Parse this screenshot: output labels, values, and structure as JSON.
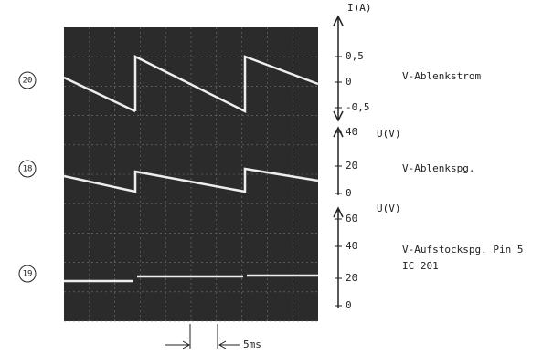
{
  "traces": [
    {
      "marker": "20",
      "label": "V-Ablenkstrom",
      "axis_label": "I(A)",
      "ticks": [
        "0,5",
        "0",
        "-0,5"
      ]
    },
    {
      "marker": "18",
      "label": "V-Ablenkspg.",
      "axis_label": "U(V)",
      "ticks": [
        "40",
        "20",
        "0"
      ]
    },
    {
      "marker": "19",
      "label": "V-Aufstockspg. Pin 5",
      "label_line2": "IC 201",
      "axis_label": "U(V)",
      "ticks": [
        "60",
        "40",
        "20",
        "0"
      ]
    }
  ],
  "timebase": "5ms"
}
